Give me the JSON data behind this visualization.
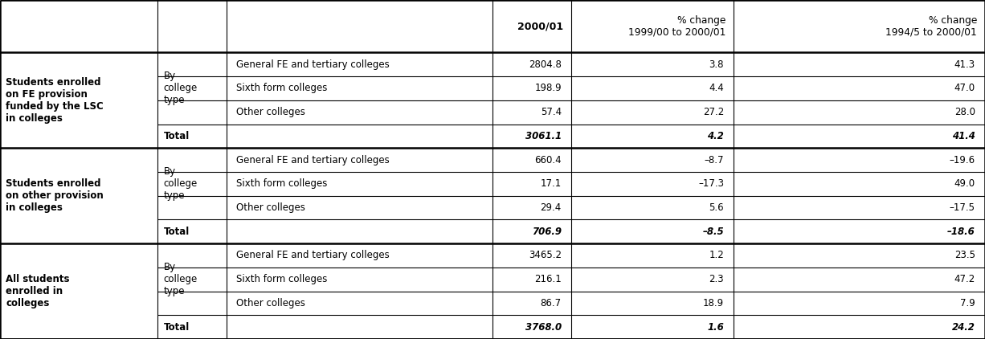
{
  "col_headers": [
    {
      "text": "2000/01",
      "align": "right",
      "bold": true
    },
    {
      "text": "% change\n1999/00 to 2000/01",
      "align": "right",
      "bold": false
    },
    {
      "text": "% change\n1994/5 to 2000/01",
      "align": "right",
      "bold": false
    }
  ],
  "sections": [
    {
      "row_label": "Students enrolled\non FE provision\nfunded by the LSC\nin colleges",
      "sub_label": "By\ncollege\ntype",
      "rows": [
        {
          "col3": "General FE and tertiary colleges",
          "v1": "2804.8",
          "v2": "3.8",
          "v3": "41.3"
        },
        {
          "col3": "Sixth form colleges",
          "v1": "198.9",
          "v2": "4.4",
          "v3": "47.0"
        },
        {
          "col3": "Other colleges",
          "v1": "57.4",
          "v2": "27.2",
          "v3": "28.0"
        }
      ],
      "total": {
        "v1": "3061.1",
        "v2": "4.2",
        "v3": "41.4"
      }
    },
    {
      "row_label": "Students enrolled\non other provision\nin colleges",
      "sub_label": "By\ncollege\ntype",
      "rows": [
        {
          "col3": "General FE and tertiary colleges",
          "v1": "660.4",
          "v2": "–8.7",
          "v3": "–19.6"
        },
        {
          "col3": "Sixth form colleges",
          "v1": "17.1",
          "v2": "–17.3",
          "v3": "49.0"
        },
        {
          "col3": "Other colleges",
          "v1": "29.4",
          "v2": "5.6",
          "v3": "–17.5"
        }
      ],
      "total": {
        "v1": "706.9",
        "v2": "–8.5",
        "v3": "–18.6"
      }
    },
    {
      "row_label": "All students\nenrolled in\ncolleges",
      "sub_label": "By\ncollege\ntype",
      "rows": [
        {
          "col3": "General FE and tertiary colleges",
          "v1": "3465.2",
          "v2": "1.2",
          "v3": "23.5"
        },
        {
          "col3": "Sixth form colleges",
          "v1": "216.1",
          "v2": "2.3",
          "v3": "47.2"
        },
        {
          "col3": "Other colleges",
          "v1": "86.7",
          "v2": "18.9",
          "v3": "7.9"
        }
      ],
      "total": {
        "v1": "3768.0",
        "v2": "1.6",
        "v3": "24.2"
      }
    }
  ],
  "background_color": "#ffffff"
}
